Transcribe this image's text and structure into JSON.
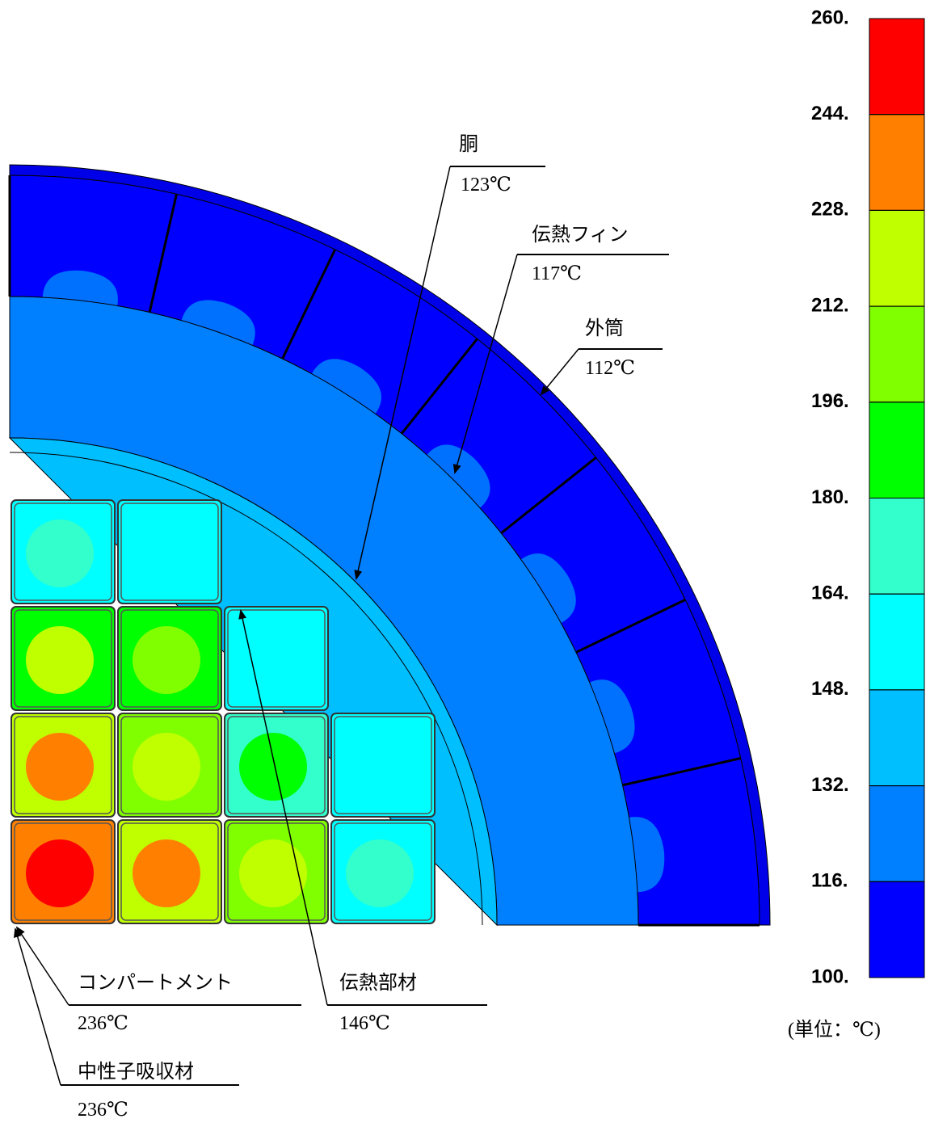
{
  "legend": {
    "ticks": [
      {
        "value": 260,
        "label": "260."
      },
      {
        "value": 244,
        "label": "244."
      },
      {
        "value": 228,
        "label": "228."
      },
      {
        "value": 212,
        "label": "212."
      },
      {
        "value": 196,
        "label": "196."
      },
      {
        "value": 180,
        "label": "180."
      },
      {
        "value": 164,
        "label": "164."
      },
      {
        "value": 148,
        "label": "148."
      },
      {
        "value": 132,
        "label": "132."
      },
      {
        "value": 116,
        "label": "116."
      },
      {
        "value": 100,
        "label": "100."
      }
    ],
    "colors": [
      "#ff0000",
      "#ff8000",
      "#bfff00",
      "#80ff00",
      "#00ff00",
      "#33ffcc",
      "#00ffff",
      "#00bfff",
      "#0080ff",
      "#0000ff"
    ],
    "unit": "(単位：℃)"
  },
  "annotations": [
    {
      "label": "胴",
      "value": "123℃"
    },
    {
      "label": "伝熱フィン",
      "value": "117℃"
    },
    {
      "label": "外筒",
      "value": "112℃"
    },
    {
      "label": "伝熱部材",
      "value": "146℃"
    },
    {
      "label": "コンパートメント",
      "value": "236℃"
    },
    {
      "label": "中性子吸収材",
      "value": "236℃"
    }
  ]
}
